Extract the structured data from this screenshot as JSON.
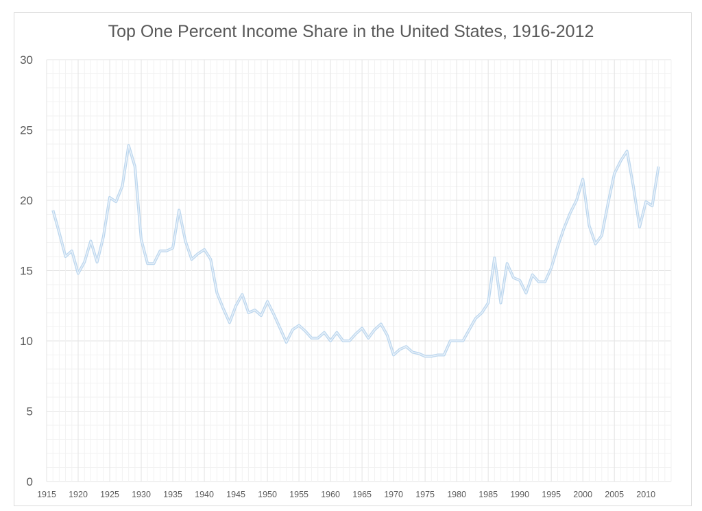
{
  "chart_data": {
    "type": "line",
    "title": "Top One Percent Income Share in the United States, 1916-2012",
    "xlabel": "",
    "ylabel": "",
    "xlim": [
      1915,
      2014
    ],
    "ylim": [
      0,
      30
    ],
    "grid": true,
    "yticks": [
      "0",
      "5",
      "10",
      "15",
      "20",
      "25",
      "30"
    ],
    "xticks": [
      "1915",
      "1920",
      "1925",
      "1930",
      "1935",
      "1940",
      "1945",
      "1950",
      "1955",
      "1960",
      "1965",
      "1970",
      "1975",
      "1980",
      "1985",
      "1990",
      "1995",
      "2000",
      "2005",
      "2010"
    ],
    "line_color": "#bdd7ee",
    "series": [
      {
        "name": "Top 1% income share",
        "x": [
          1916,
          1917,
          1918,
          1919,
          1920,
          1921,
          1922,
          1923,
          1924,
          1925,
          1926,
          1927,
          1928,
          1929,
          1930,
          1931,
          1932,
          1933,
          1934,
          1935,
          1936,
          1937,
          1938,
          1939,
          1940,
          1941,
          1942,
          1943,
          1944,
          1945,
          1946,
          1947,
          1948,
          1949,
          1950,
          1951,
          1952,
          1953,
          1954,
          1955,
          1956,
          1957,
          1958,
          1959,
          1960,
          1961,
          1962,
          1963,
          1964,
          1965,
          1966,
          1967,
          1968,
          1969,
          1970,
          1971,
          1972,
          1973,
          1974,
          1975,
          1976,
          1977,
          1978,
          1979,
          1980,
          1981,
          1982,
          1983,
          1984,
          1985,
          1986,
          1987,
          1988,
          1989,
          1990,
          1991,
          1992,
          1993,
          1994,
          1995,
          1996,
          1997,
          1998,
          1999,
          2000,
          2001,
          2002,
          2003,
          2004,
          2005,
          2006,
          2007,
          2008,
          2009,
          2010,
          2011,
          2012
        ],
        "values": [
          19.3,
          17.7,
          16.0,
          16.4,
          14.8,
          15.6,
          17.1,
          15.6,
          17.4,
          20.2,
          19.9,
          21.0,
          23.9,
          22.4,
          17.2,
          15.5,
          15.5,
          16.4,
          16.4,
          16.6,
          19.3,
          17.1,
          15.8,
          16.2,
          16.5,
          15.8,
          13.4,
          12.3,
          11.3,
          12.5,
          13.3,
          12.0,
          12.2,
          11.8,
          12.8,
          11.9,
          10.9,
          9.9,
          10.8,
          11.1,
          10.7,
          10.2,
          10.2,
          10.6,
          10.0,
          10.6,
          10.0,
          10.0,
          10.5,
          10.9,
          10.2,
          10.8,
          11.2,
          10.4,
          9.0,
          9.4,
          9.6,
          9.2,
          9.1,
          8.9,
          8.9,
          9.0,
          9.0,
          10.0,
          10.0,
          10.0,
          10.8,
          11.6,
          12.0,
          12.7,
          15.9,
          12.7,
          15.5,
          14.5,
          14.3,
          13.4,
          14.7,
          14.2,
          14.2,
          15.2,
          16.7,
          18.0,
          19.1,
          20.0,
          21.5,
          18.2,
          16.9,
          17.5,
          19.8,
          21.9,
          22.8,
          23.5,
          21.0,
          18.1,
          19.9,
          19.6,
          22.4
        ]
      }
    ]
  }
}
